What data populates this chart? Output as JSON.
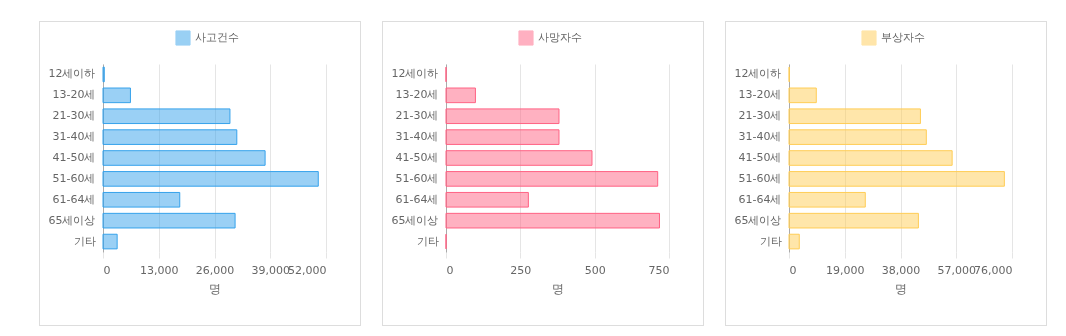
{
  "chart_data": [
    {
      "type": "bar",
      "orientation": "horizontal",
      "categories": [
        "12세이하",
        "13-20세",
        "21-30세",
        "31-40세",
        "41-50세",
        "51-60세",
        "61-64세",
        "65세이상",
        "기타"
      ],
      "series": [
        {
          "name": "사고건수",
          "color": "#36a2eb",
          "values": [
            300,
            6400,
            29600,
            31200,
            37800,
            50200,
            17900,
            30800,
            3300
          ]
        }
      ],
      "xlabel": "명",
      "xlim": [
        0,
        52000
      ],
      "xticks": [
        {
          "value": 0,
          "label": "0"
        },
        {
          "value": 13000,
          "label": "13,000"
        },
        {
          "value": 26000,
          "label": "26,000"
        },
        {
          "value": 39000,
          "label": "39,000"
        },
        {
          "value": 52000,
          "label": "52,000"
        }
      ],
      "grid": "x",
      "legend": "top"
    },
    {
      "type": "bar",
      "orientation": "horizontal",
      "categories": [
        "12세이하",
        "13-20세",
        "21-30세",
        "31-40세",
        "41-50세",
        "51-60세",
        "61-64세",
        "65세이상",
        "기타"
      ],
      "series": [
        {
          "name": "사망자수",
          "color": "#ff6384",
          "values": [
            0,
            99,
            380,
            380,
            491,
            712,
            277,
            718,
            0
          ]
        }
      ],
      "xlabel": "명",
      "xlim": [
        0,
        750
      ],
      "xticks": [
        0,
        250,
        500,
        750
      ],
      "grid": "x",
      "legend": "top"
    },
    {
      "type": "bar",
      "orientation": "horizontal",
      "categories": [
        "12세이하",
        "13-20세",
        "21-30세",
        "31-40세",
        "41-50세",
        "51-60세",
        "61-64세",
        "65세이상",
        "기타"
      ],
      "series": [
        {
          "name": "부상자수",
          "color": "#ffcd56",
          "values": [
            100,
            9300,
            44800,
            46800,
            55600,
            73400,
            26000,
            44100,
            3500
          ]
        }
      ],
      "xlabel": "명",
      "xlim": [
        0,
        76000
      ],
      "xticks": [
        {
          "value": 0,
          "label": "0"
        },
        {
          "value": 19000,
          "label": "19,000"
        },
        {
          "value": 38000,
          "label": "38,000"
        },
        {
          "value": 57000,
          "label": "57,000"
        },
        {
          "value": 76000,
          "label": "76,000"
        }
      ],
      "grid": "x",
      "legend": "top"
    }
  ]
}
